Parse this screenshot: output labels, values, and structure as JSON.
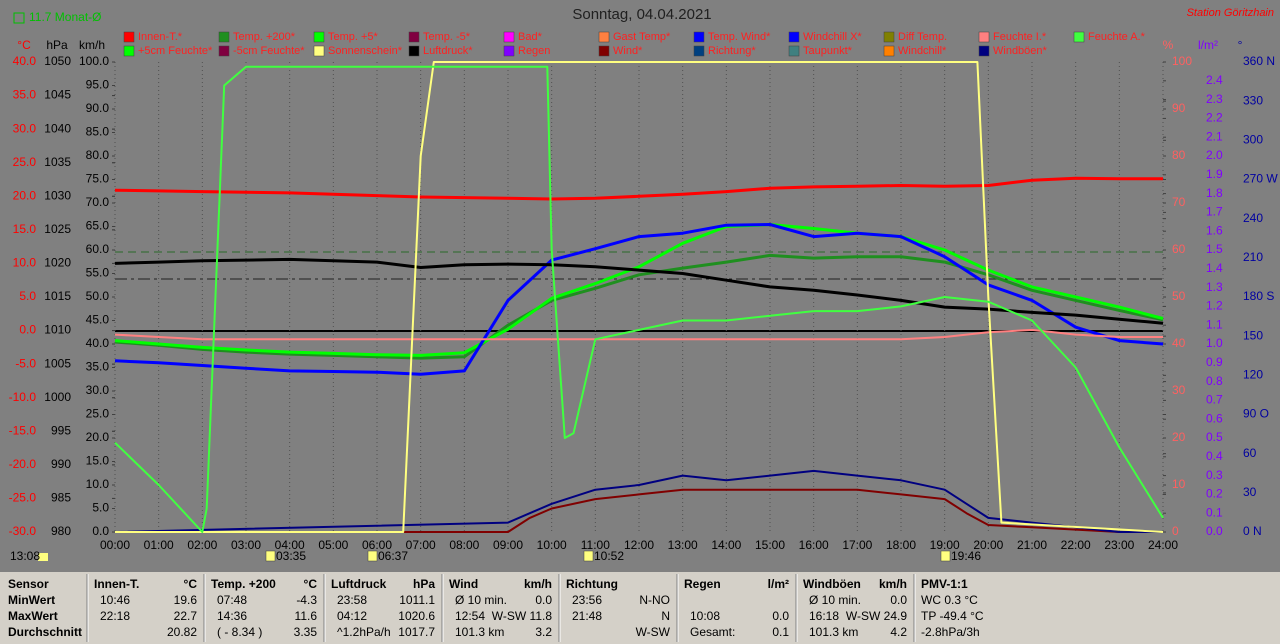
{
  "title": "Sonntag, 04.04.2021",
  "station": "Station Göritzhain",
  "month_avg": "11.7 Monat-Ø",
  "time": "13:08",
  "events": [
    "03:35",
    "06:37",
    "10:52",
    "19:46"
  ],
  "legend": [
    {
      "name": "Innen-T.*",
      "color": "#ff0000"
    },
    {
      "name": "Temp. +200*",
      "color": "#1f8f1f"
    },
    {
      "name": "Temp. +5*",
      "color": "#00ff00"
    },
    {
      "name": "Temp. -5*",
      "color": "#800040"
    },
    {
      "name": "Bad*",
      "color": "#ff00ff"
    },
    {
      "name": "Gast Temp*",
      "color": "#ff8040"
    },
    {
      "name": "Temp. Wind*",
      "color": "#0000ff"
    },
    {
      "name": "Windchill X*",
      "color": "#0000ff"
    },
    {
      "name": "Diff Temp.",
      "color": "#808000"
    },
    {
      "name": "Feuchte I.*",
      "color": "#ff8080"
    },
    {
      "name": "Feuchte A.*",
      "color": "#40ff40"
    },
    {
      "name": "+5cm Feuchte*",
      "color": "#00ff00"
    },
    {
      "name": "-5cm Feuchte*",
      "color": "#800040"
    },
    {
      "name": "Sonnenschein*",
      "color": "#ffff80"
    },
    {
      "name": "Luftdruck*",
      "color": "#000000"
    },
    {
      "name": "Regen",
      "color": "#8000ff"
    },
    {
      "name": "Wind*",
      "color": "#800000"
    },
    {
      "name": "Richtung*",
      "color": "#004080"
    },
    {
      "name": "Taupunkt*",
      "color": "#408080"
    },
    {
      "name": "Windchill*",
      "color": "#ff8000"
    },
    {
      "name": "Windböen*",
      "color": "#000080"
    }
  ],
  "chart_data": {
    "type": "line",
    "xlim": [
      0,
      24
    ],
    "x": [
      0,
      1,
      2,
      3,
      4,
      5,
      6,
      7,
      8,
      9,
      10,
      11,
      12,
      13,
      14,
      15,
      16,
      17,
      18,
      19,
      20,
      21,
      22,
      23,
      24
    ],
    "xticks": [
      {
        "value": 0,
        "label": "00:00"
      },
      {
        "value": 1,
        "label": "01:00"
      },
      {
        "value": 2,
        "label": "02:00"
      },
      {
        "value": 3,
        "label": "03:00"
      },
      {
        "value": 4,
        "label": "04:00"
      },
      {
        "value": 5,
        "label": "05:00"
      },
      {
        "value": 6,
        "label": "06:00"
      },
      {
        "value": 7,
        "label": "07:00"
      },
      {
        "value": 8,
        "label": "08:00"
      },
      {
        "value": 9,
        "label": "09:00"
      },
      {
        "value": 10,
        "label": "10:00"
      },
      {
        "value": 11,
        "label": "11:00"
      },
      {
        "value": 12,
        "label": "12:00"
      },
      {
        "value": 13,
        "label": "13:00"
      },
      {
        "value": 14,
        "label": "14:00"
      },
      {
        "value": 15,
        "label": "15:00"
      },
      {
        "value": 16,
        "label": "16:00"
      },
      {
        "value": 17,
        "label": "17:00"
      },
      {
        "value": 18,
        "label": "18:00"
      },
      {
        "value": 19,
        "label": "19:00"
      },
      {
        "value": 20,
        "label": "20:00"
      },
      {
        "value": 21,
        "label": "21:00"
      },
      {
        "value": 22,
        "label": "22:00"
      },
      {
        "value": 23,
        "label": "23:00"
      },
      {
        "value": 24,
        "label": "24:00"
      }
    ],
    "y_axes": [
      {
        "unit": "°C",
        "color": "#ff0000",
        "ylim": [
          -30,
          40
        ],
        "yticks": [
          {
            "value": 40,
            "label": "40.0"
          },
          {
            "value": 35,
            "label": "35.0"
          },
          {
            "value": 30,
            "label": "30.0"
          },
          {
            "value": 25,
            "label": "25.0"
          },
          {
            "value": 20,
            "label": "20.0"
          },
          {
            "value": 15,
            "label": "15.0"
          },
          {
            "value": 10,
            "label": "10.0"
          },
          {
            "value": 5,
            "label": "5.0"
          },
          {
            "value": 0,
            "label": "0.0"
          },
          {
            "value": -5,
            "label": "-5.0"
          },
          {
            "value": -10,
            "label": "-10.0"
          },
          {
            "value": -15,
            "label": "-15.0"
          },
          {
            "value": -20,
            "label": "-20.0"
          },
          {
            "value": -25,
            "label": "-25.0"
          },
          {
            "value": -30,
            "label": "-30.0"
          }
        ],
        "series": [
          {
            "name": "Innen-T.*",
            "color": "#ff0000",
            "values": [
              20.9,
              20.8,
              20.7,
              20.6,
              20.5,
              20.3,
              20.1,
              19.9,
              19.8,
              19.7,
              19.6,
              19.7,
              20.0,
              20.3,
              20.7,
              21.2,
              21.4,
              21.5,
              21.6,
              21.5,
              21.6,
              22.4,
              22.7,
              22.6,
              22.6
            ]
          },
          {
            "name": "Temp. +200*",
            "color": "#1f8f1f",
            "values": [
              -1.7,
              -2.2,
              -2.8,
              -3.2,
              -3.5,
              -3.7,
              -3.9,
              -4.1,
              -3.9,
              0.8,
              4.5,
              6.3,
              8.3,
              9.3,
              10.2,
              11.2,
              10.8,
              11.0,
              11.0,
              10.2,
              8.3,
              6.0,
              4.5,
              3.0,
              1.6
            ]
          },
          {
            "name": "Temp. +5*",
            "color": "#00ff00",
            "values": [
              -1.5,
              -2.0,
              -2.5,
              -2.9,
              -3.2,
              -3.4,
              -3.6,
              -3.7,
              -3.3,
              0.2,
              4.8,
              7.0,
              9.5,
              13.0,
              15.5,
              15.8,
              15.2,
              14.5,
              14.0,
              12.0,
              9.0,
              6.5,
              5.0,
              3.5,
              1.8
            ]
          },
          {
            "name": "Temp. Wind*",
            "color": "#0000ff",
            "values": [
              -4.5,
              -4.8,
              -5.2,
              -5.6,
              -6.0,
              -6.1,
              -6.2,
              -6.5,
              -6.0,
              4.5,
              10.5,
              12.2,
              14.0,
              14.5,
              15.7,
              15.8,
              14.0,
              14.5,
              14.0,
              11.0,
              6.8,
              4.5,
              0.5,
              -1.5,
              -2.0
            ]
          }
        ]
      },
      {
        "unit": "hPa",
        "color": "#000000",
        "ylim": [
          980,
          1050
        ],
        "yticks": [
          1050,
          1045,
          1040,
          1035,
          1030,
          1025,
          1020,
          1015,
          1010,
          1005,
          1000,
          995,
          990,
          985,
          980
        ],
        "series": [
          {
            "name": "Luftdruck*",
            "color": "#000000",
            "values": [
              1020.0,
              1020.2,
              1020.4,
              1020.5,
              1020.6,
              1020.4,
              1020.2,
              1019.4,
              1019.8,
              1019.9,
              1019.8,
              1019.5,
              1019.0,
              1018.5,
              1017.5,
              1016.5,
              1016.0,
              1015.3,
              1014.5,
              1013.5,
              1013.2,
              1012.7,
              1012.3,
              1011.7,
              1011.1
            ]
          }
        ]
      },
      {
        "unit": "km/h",
        "color": "#000000",
        "ylim": [
          0,
          100
        ],
        "yticks": [
          {
            "value": 100,
            "label": "100.0"
          },
          {
            "value": 95,
            "label": "95.0"
          },
          {
            "value": 90,
            "label": "90.0"
          },
          {
            "value": 85,
            "label": "85.0"
          },
          {
            "value": 80,
            "label": "80.0"
          },
          {
            "value": 75,
            "label": "75.0"
          },
          {
            "value": 70,
            "label": "70.0"
          },
          {
            "value": 65,
            "label": "65.0"
          },
          {
            "value": 60,
            "label": "60.0"
          },
          {
            "value": 55,
            "label": "55.0"
          },
          {
            "value": 50,
            "label": "50.0"
          },
          {
            "value": 45,
            "label": "45.0"
          },
          {
            "value": 40,
            "label": "40.0"
          },
          {
            "value": 35,
            "label": "35.0"
          },
          {
            "value": 30,
            "label": "30.0"
          },
          {
            "value": 25,
            "label": "25.0"
          },
          {
            "value": 20,
            "label": "20.0"
          },
          {
            "value": 15,
            "label": "15.0"
          },
          {
            "value": 10,
            "label": "10.0"
          },
          {
            "value": 5,
            "label": "5.0"
          },
          {
            "value": 0,
            "label": "0.0"
          }
        ],
        "series": [
          {
            "name": "Wind*",
            "color": "#800000",
            "x": [
              0,
              9,
              9.5,
              10,
              11,
              12,
              13,
              14,
              15,
              16,
              17,
              18,
              19,
              19.5,
              20,
              21,
              22,
              23,
              24
            ],
            "values": [
              0,
              0,
              3,
              5,
              7,
              8,
              9,
              9,
              9,
              9,
              9,
              8,
              7,
              4,
              1.5,
              1,
              0.5,
              0,
              0
            ]
          },
          {
            "name": "Windböen*",
            "color": "#000080",
            "x": [
              0,
              9,
              9.5,
              10,
              11,
              12,
              13,
              14,
              15,
              16,
              17,
              18,
              19,
              19.5,
              20,
              21,
              22,
              23,
              24
            ],
            "values": [
              0,
              2,
              4,
              6,
              9,
              10,
              12,
              11,
              12,
              13,
              12,
              11,
              9,
              6,
              3,
              2,
              1,
              0,
              0
            ]
          }
        ]
      },
      {
        "unit": "%",
        "color": "#ff6060",
        "ylim": [
          0,
          100
        ],
        "yticks": [
          100,
          90,
          80,
          70,
          60,
          50,
          40,
          30,
          20,
          10,
          0
        ],
        "series": [
          {
            "name": "Feuchte I.*",
            "color": "#ff8080",
            "values": [
              42,
              41.5,
              41,
              41,
              41,
              41,
              41,
              41,
              41,
              41,
              41,
              41,
              41,
              41,
              41,
              41,
              41,
              41,
              41,
              41.5,
              42.5,
              43,
              42,
              41.5,
              41.5
            ]
          },
          {
            "name": "Sonnenschein*",
            "color": "#ffff80",
            "x": [
              0,
              6.6,
              7.0,
              7.3,
              19.75,
              20.0,
              20.3,
              24
            ],
            "values": [
              0,
              0,
              80,
              100,
              100,
              50,
              2,
              0
            ]
          },
          {
            "name": "Feuchte A.*",
            "color": "#40ff40",
            "x": [
              0,
              1,
              2,
              2.1,
              2.5,
              3,
              9.9,
              10,
              10.3,
              10.5,
              11,
              12,
              13,
              14,
              15,
              16,
              17,
              18,
              19,
              20,
              21,
              22,
              23,
              24
            ],
            "values": [
              19,
              10,
              0,
              5,
              95,
              99,
              99,
              60,
              20,
              21,
              41,
              43,
              45,
              45,
              46,
              47,
              47,
              48,
              50,
              49,
              45,
              35,
              18,
              3
            ]
          }
        ]
      },
      {
        "unit": "l/m²",
        "color": "#8000ff",
        "ylim": [
          0,
          2.5
        ],
        "yticks": [
          2.4,
          2.3,
          2.2,
          2.1,
          {
            "value": 2,
            "label": "2.0"
          },
          1.9,
          1.8,
          1.7,
          1.6,
          1.5,
          1.4,
          1.3,
          1.2,
          1.1,
          {
            "value": 1,
            "label": "1.0"
          },
          0.9,
          0.8,
          0.7,
          0.6,
          0.5,
          0.4,
          0.3,
          0.2,
          0.1,
          {
            "value": 0,
            "label": "0.0"
          }
        ]
      },
      {
        "unit": "°",
        "color": "#0000a0",
        "ylim": [
          0,
          360
        ],
        "yticks": [
          {
            "value": 360,
            "label": "360 N"
          },
          330,
          300,
          {
            "value": 270,
            "label": "270 W"
          },
          240,
          210,
          {
            "value": 180,
            "label": "180 S"
          },
          150,
          120,
          {
            "value": 90,
            "label": "90 O"
          },
          60,
          30,
          {
            "value": 0,
            "label": "0 N"
          }
        ]
      }
    ]
  },
  "table": {
    "row_labels": [
      "Sensor",
      "MinWert",
      "MaxWert",
      "Durchschnitt"
    ],
    "columns": [
      {
        "header": [
          "Innen-T.",
          "°C"
        ],
        "rows": [
          [
            "10:46",
            "19.6"
          ],
          [
            "22:18",
            "22.7"
          ],
          [
            "20.82"
          ]
        ]
      },
      {
        "header": [
          "Temp. +200",
          "°C"
        ],
        "rows": [
          [
            "07:48",
            "-4.3"
          ],
          [
            "14:36",
            "11.6"
          ],
          [
            "( - 8.34 )",
            "3.35"
          ]
        ]
      },
      {
        "header": [
          "Luftdruck",
          "hPa"
        ],
        "rows": [
          [
            "23:58",
            "1011.1"
          ],
          [
            "04:12",
            "1020.6"
          ],
          [
            "^1.2hPa/h",
            "1017.7"
          ]
        ]
      },
      {
        "header": [
          "Wind",
          "km/h"
        ],
        "rows": [
          [
            "Ø 10 min.",
            "0.0"
          ],
          [
            "12:54",
            "W-SW 11.8"
          ],
          [
            "101.3 km",
            "3.2"
          ]
        ]
      },
      {
        "header": [
          "Richtung"
        ],
        "rows": [
          [
            "23:56",
            "N-NO"
          ],
          [
            "21:48",
            "N"
          ],
          [
            "W-SW"
          ]
        ]
      },
      {
        "header": [
          "Regen",
          "l/m²"
        ],
        "rows": [
          [],
          [
            "10:08",
            "0.0"
          ],
          [
            "Gesamt:",
            "0.1"
          ]
        ]
      },
      {
        "header": [
          "Windböen",
          "km/h"
        ],
        "rows": [
          [
            "Ø 10 min.",
            "0.0"
          ],
          [
            "16:18",
            "W-SW 24.9"
          ],
          [
            "101.3 km",
            "4.2"
          ]
        ]
      },
      {
        "header": [
          "PMV-1:1"
        ],
        "rows": [
          [
            "WC 0.3 °C"
          ],
          [
            "TP -49.4 °C"
          ],
          [
            "-2.8hPa/3h"
          ]
        ]
      }
    ]
  }
}
